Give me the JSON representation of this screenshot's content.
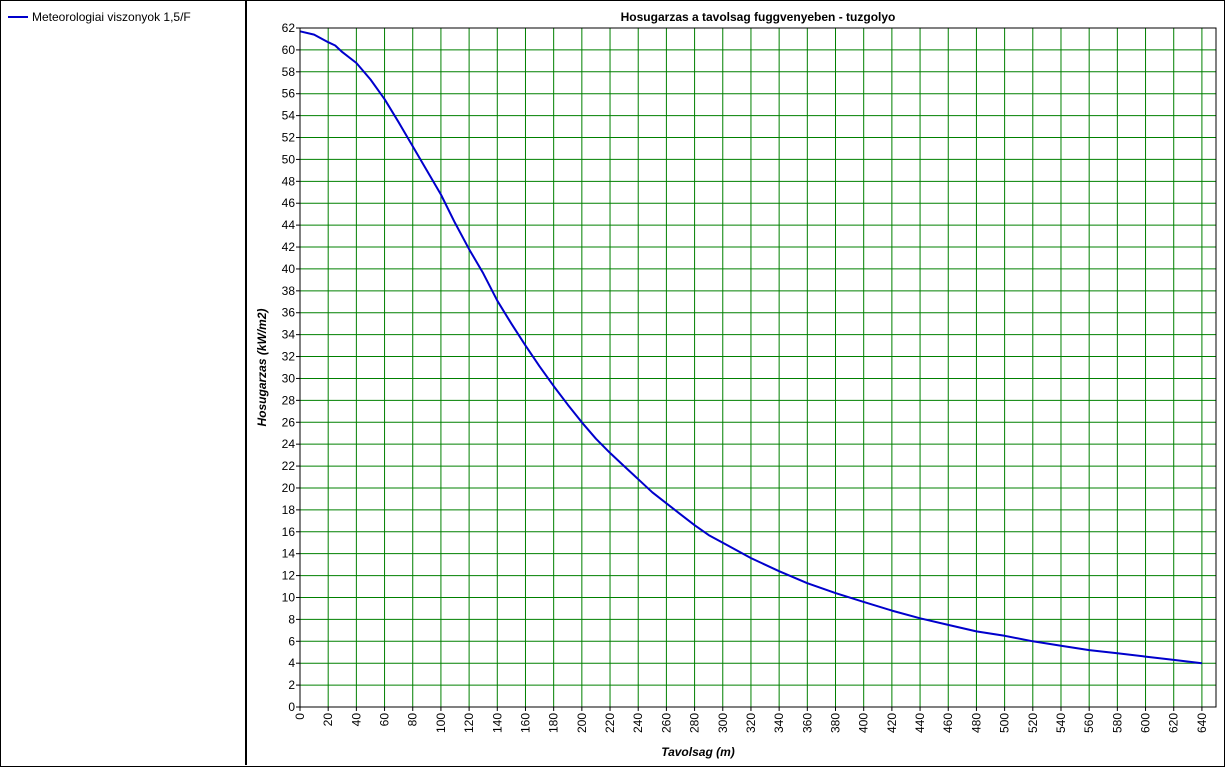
{
  "legend": {
    "items": [
      {
        "label": "Meteorologiai viszonyok 1,5/F",
        "color": "#0000cc"
      }
    ]
  },
  "colors": {
    "grid": "#008000",
    "series": "#0000cc",
    "axis": "#000000"
  },
  "chart_data": {
    "type": "line",
    "title": "Hosugarzas a tavolsag fuggvenyeben - tuzgolyo",
    "xlabel": "Tavolsag (m)",
    "ylabel": "Hosugarzas (kW/m2)",
    "xlim": [
      0,
      650
    ],
    "ylim": [
      0,
      62
    ],
    "x_ticks": [
      0,
      20,
      40,
      60,
      80,
      100,
      120,
      140,
      160,
      180,
      200,
      220,
      240,
      260,
      280,
      300,
      320,
      340,
      360,
      380,
      400,
      420,
      440,
      460,
      480,
      500,
      520,
      540,
      560,
      580,
      600,
      620,
      640
    ],
    "y_ticks": [
      0,
      2,
      4,
      6,
      8,
      10,
      12,
      14,
      16,
      18,
      20,
      22,
      24,
      26,
      28,
      30,
      32,
      34,
      36,
      38,
      40,
      42,
      44,
      46,
      48,
      50,
      52,
      54,
      56,
      58,
      60,
      62
    ],
    "grid": true,
    "legend_position": "left-panel",
    "series": [
      {
        "name": "Meteorologiai viszonyok 1,5/F",
        "x": [
          0,
          10,
          20,
          25,
          30,
          40,
          50,
          60,
          70,
          80,
          90,
          100,
          110,
          120,
          130,
          140,
          150,
          160,
          170,
          180,
          190,
          200,
          210,
          220,
          230,
          240,
          250,
          260,
          270,
          280,
          290,
          300,
          320,
          340,
          360,
          380,
          400,
          420,
          440,
          460,
          480,
          500,
          520,
          540,
          560,
          580,
          600,
          620,
          640
        ],
        "y": [
          61.7,
          61.4,
          60.7,
          60.4,
          59.8,
          58.8,
          57.3,
          55.5,
          53.4,
          51.2,
          49.0,
          46.8,
          44.2,
          41.8,
          39.6,
          37.1,
          35.0,
          33.0,
          31.1,
          29.3,
          27.6,
          26.0,
          24.5,
          23.2,
          22.0,
          20.8,
          19.6,
          18.6,
          17.6,
          16.6,
          15.7,
          15.0,
          13.6,
          12.4,
          11.3,
          10.4,
          9.6,
          8.8,
          8.1,
          7.5,
          6.9,
          6.5,
          6.0,
          5.6,
          5.2,
          4.9,
          4.6,
          4.3,
          4.0
        ]
      }
    ]
  }
}
